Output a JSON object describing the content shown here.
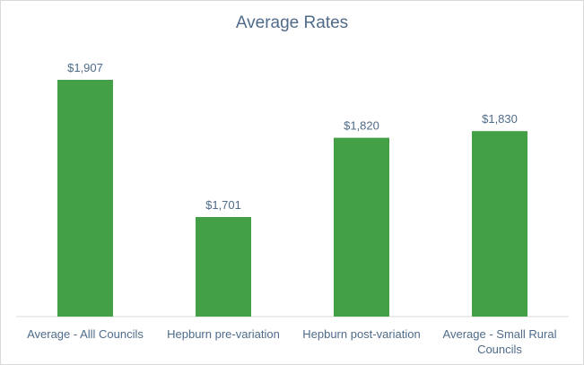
{
  "chart_data": {
    "type": "bar",
    "title": "Average Rates",
    "categories": [
      [
        "Average - Alll Councils"
      ],
      [
        "Hepburn pre-variation"
      ],
      [
        "Hepburn post-variation"
      ],
      [
        "Average - Small Rural",
        "Councils"
      ]
    ],
    "values": [
      1907,
      1701,
      1820,
      1830
    ],
    "data_labels": [
      "$1,907",
      "$1,701",
      "$1,820",
      "$1,830"
    ],
    "ylim": [
      1500,
      1950
    ],
    "grid": false,
    "legend": "none",
    "bar_color": "#43a047"
  }
}
